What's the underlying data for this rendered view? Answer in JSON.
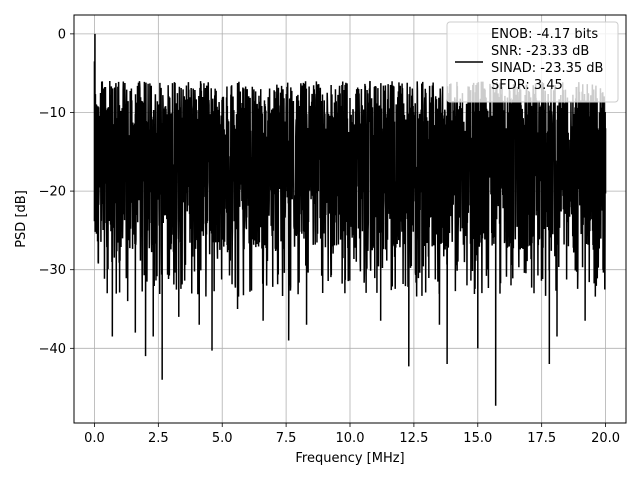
{
  "chart_data": {
    "type": "line",
    "xlabel": "Frequency [MHz]",
    "ylabel": "PSD [dB]",
    "xlim": [
      -0.8,
      20.8
    ],
    "ylim": [
      -49.5,
      2.4
    ],
    "xticks": [
      0.0,
      2.5,
      5.0,
      7.5,
      10.0,
      12.5,
      15.0,
      17.5,
      20.0
    ],
    "xtick_labels": [
      "0.0",
      "2.5",
      "5.0",
      "7.5",
      "10.0",
      "12.5",
      "15.0",
      "17.5",
      "20.0"
    ],
    "yticks": [
      0,
      -10,
      -20,
      -30,
      -40
    ],
    "ytick_labels": [
      "0",
      "−10",
      "−20",
      "−30",
      "−40"
    ],
    "grid": true,
    "legend": {
      "placement": "top-right",
      "lines": [
        "ENOB: -4.17 bits",
        "SNR: -23.33 dB",
        "SINAD: -23.35 dB",
        "SFDR: 3.45"
      ]
    },
    "series": [
      {
        "color": "#000000",
        "noise_band_db": [
          -27.5,
          -6.0
        ],
        "x": [
          0.0,
          0.02,
          0.05,
          0.1,
          0.5,
          0.6,
          0.7,
          1.3,
          1.6,
          2.0,
          2.3,
          2.65,
          3.3,
          4.1,
          4.6,
          5.6,
          6.6,
          7.6,
          8.3,
          9.8,
          11.2,
          12.3,
          13.5,
          13.8,
          15.0,
          15.7,
          16.3,
          17.2,
          17.8,
          18.1,
          19.2,
          19.9,
          20.0
        ],
        "y": [
          -3.5,
          0.0,
          -13.5,
          -25.0,
          -33.0,
          -6.0,
          -38.5,
          -34.0,
          -38.0,
          -41.0,
          -38.5,
          -44.0,
          -36.0,
          -37.0,
          -40.3,
          -35.0,
          -36.5,
          -39.0,
          -37.0,
          -33.0,
          -36.5,
          -42.3,
          -37.0,
          -42.0,
          -40.0,
          -47.3,
          -32.0,
          -33.0,
          -42.0,
          -38.5,
          -36.5,
          -30.0,
          -12.0
        ]
      }
    ]
  }
}
